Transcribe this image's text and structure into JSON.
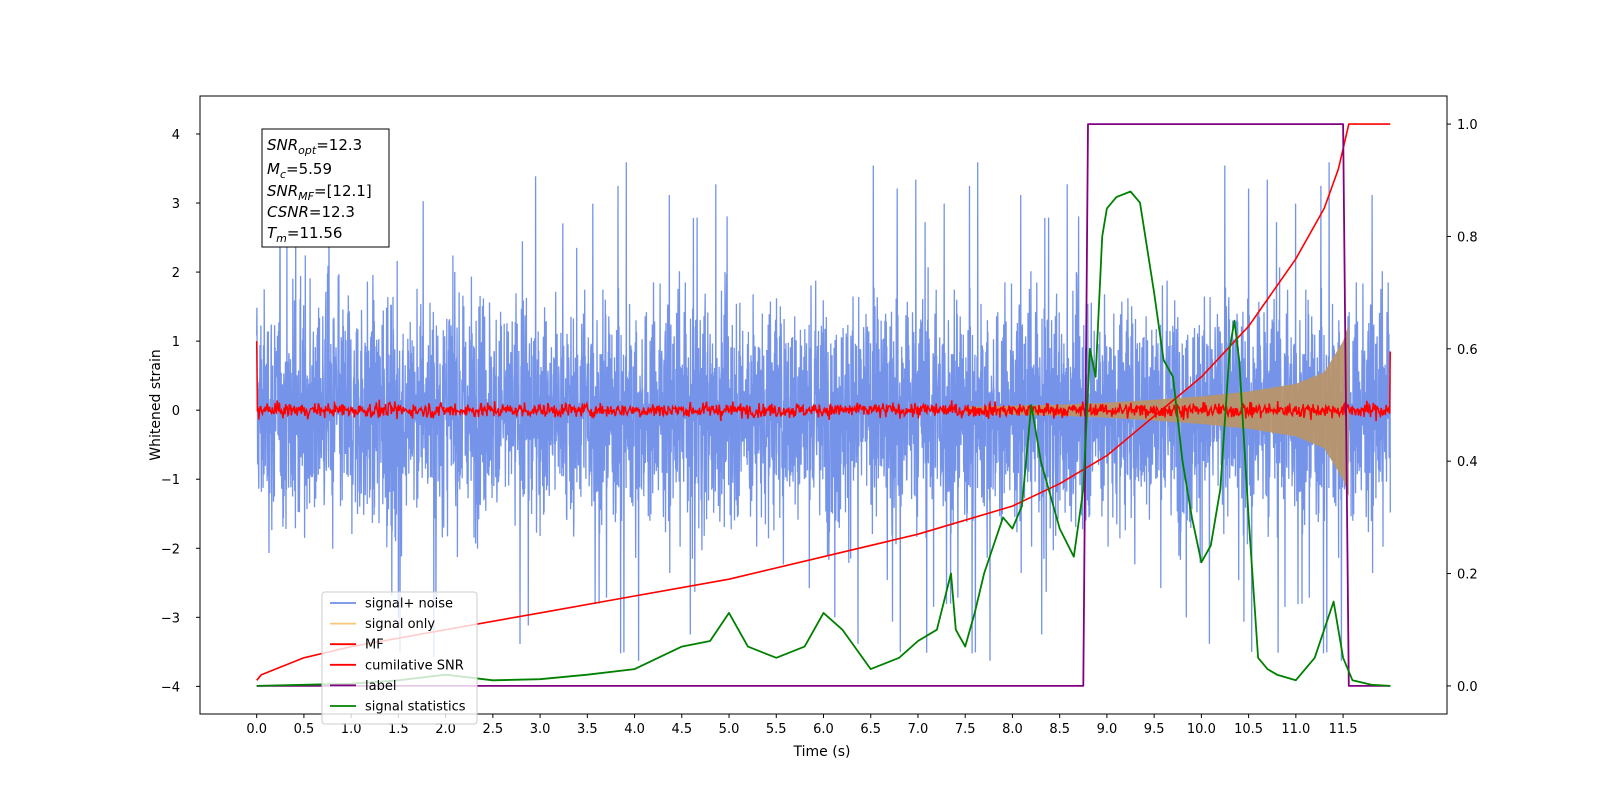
{
  "chart_data": {
    "type": "line",
    "xlabel": "Time (s)",
    "ylabel": "Whitened strain",
    "xlim": [
      -0.6,
      12.6
    ],
    "ylim": [
      -4.4,
      4.55
    ],
    "ylim_right": [
      -0.05,
      1.05
    ],
    "x_ticks": [
      "0.0",
      "0.5",
      "1.0",
      "1.5",
      "2.0",
      "2.5",
      "3.0",
      "3.5",
      "4.0",
      "4.5",
      "5.0",
      "5.5",
      "6.0",
      "6.5",
      "7.0",
      "7.5",
      "8.0",
      "8.5",
      "9.0",
      "9.5",
      "10.0",
      "10.5",
      "11.0",
      "11.5"
    ],
    "y_ticks": [
      "4",
      "3",
      "2",
      "1",
      "0",
      "−1",
      "−2",
      "−3",
      "−4"
    ],
    "y_ticks_right": [
      "1.0",
      "0.8",
      "0.6",
      "0.4",
      "0.2",
      "0.0"
    ],
    "grid": false,
    "info_box": {
      "snr_opt": "=12.3",
      "mc": "=5.59",
      "snr_mf": "=[12.1]",
      "csnr": "=12.3",
      "tm": "=11.56"
    },
    "legend": {
      "position": "lower-left",
      "entries": [
        "signal+ noise",
        "signal only",
        "MF",
        "cumilative SNR",
        "label",
        "signal statistics"
      ]
    },
    "series": [
      {
        "name": "signal+ noise",
        "axis": "left",
        "color": "#6e8ee8",
        "description": "whitened noise, amplitude ~ +/-2.5 with spikes up to ~4.2 and down to ~-3.9, t = 0 to 12",
        "t_start": 0.0,
        "t_end": 12.0,
        "typical_amplitude": 2.4,
        "max": 4.17,
        "min": -3.9
      },
      {
        "name": "signal only",
        "axis": "left",
        "color": "#f5c777",
        "description": "chirp signal envelope growing toward merger",
        "envelope_points": [
          [
            7.5,
            0.05
          ],
          [
            8.5,
            0.08
          ],
          [
            9.0,
            0.11
          ],
          [
            9.5,
            0.15
          ],
          [
            10.0,
            0.2
          ],
          [
            10.5,
            0.27
          ],
          [
            11.0,
            0.38
          ],
          [
            11.3,
            0.55
          ],
          [
            11.5,
            1.0
          ],
          [
            11.56,
            1.25
          ]
        ]
      },
      {
        "name": "MF",
        "axis": "left",
        "color": "#ff0000",
        "description": "matched filter output, noise about 0 with amplitude ~0.1, spike 1.0 at t=0 and 0.85 at t=12",
        "start_value": 1.0,
        "end_value": 0.85,
        "noise_amplitude": 0.1
      },
      {
        "name": "cumilative SNR",
        "axis": "right",
        "color": "#ff0000",
        "x": [
          0.0,
          0.05,
          0.5,
          1.0,
          2.0,
          3.0,
          4.0,
          5.0,
          6.0,
          7.0,
          8.0,
          8.5,
          9.0,
          9.5,
          10.0,
          10.5,
          11.0,
          11.3,
          11.45,
          11.56,
          12.0
        ],
        "y": [
          0.01,
          0.02,
          0.05,
          0.07,
          0.1,
          0.13,
          0.16,
          0.19,
          0.23,
          0.27,
          0.32,
          0.36,
          0.41,
          0.48,
          0.55,
          0.64,
          0.76,
          0.85,
          0.92,
          1.0,
          1.0
        ]
      },
      {
        "name": "label",
        "axis": "right",
        "color": "#800080",
        "x": [
          0.0,
          8.75,
          8.8,
          11.5,
          11.56,
          12.0
        ],
        "y": [
          0.0,
          0.0,
          1.0,
          1.0,
          0.0,
          0.0
        ]
      },
      {
        "name": "signal statistics",
        "axis": "right",
        "color": "#008000",
        "x": [
          0.0,
          0.5,
          1.0,
          1.5,
          2.0,
          2.5,
          3.0,
          3.5,
          4.0,
          4.5,
          4.8,
          5.0,
          5.2,
          5.5,
          5.8,
          6.0,
          6.2,
          6.5,
          6.8,
          7.0,
          7.2,
          7.35,
          7.4,
          7.5,
          7.6,
          7.7,
          7.8,
          7.9,
          8.0,
          8.1,
          8.2,
          8.25,
          8.3,
          8.5,
          8.65,
          8.75,
          8.82,
          8.88,
          8.95,
          9.0,
          9.1,
          9.25,
          9.35,
          9.5,
          9.6,
          9.7,
          9.8,
          9.9,
          10.0,
          10.1,
          10.2,
          10.3,
          10.35,
          10.4,
          10.5,
          10.6,
          10.7,
          10.8,
          11.0,
          11.2,
          11.4,
          11.5,
          11.6,
          11.8,
          12.0
        ],
        "y": [
          0.0,
          0.002,
          0.004,
          0.01,
          0.02,
          0.01,
          0.012,
          0.02,
          0.03,
          0.07,
          0.08,
          0.13,
          0.07,
          0.05,
          0.07,
          0.13,
          0.1,
          0.03,
          0.05,
          0.08,
          0.1,
          0.2,
          0.1,
          0.07,
          0.13,
          0.2,
          0.25,
          0.3,
          0.28,
          0.32,
          0.5,
          0.45,
          0.4,
          0.28,
          0.23,
          0.35,
          0.6,
          0.55,
          0.8,
          0.85,
          0.87,
          0.88,
          0.86,
          0.7,
          0.58,
          0.55,
          0.4,
          0.3,
          0.22,
          0.25,
          0.35,
          0.6,
          0.65,
          0.58,
          0.3,
          0.05,
          0.03,
          0.02,
          0.01,
          0.05,
          0.15,
          0.05,
          0.01,
          0.002,
          0.0
        ]
      }
    ]
  }
}
